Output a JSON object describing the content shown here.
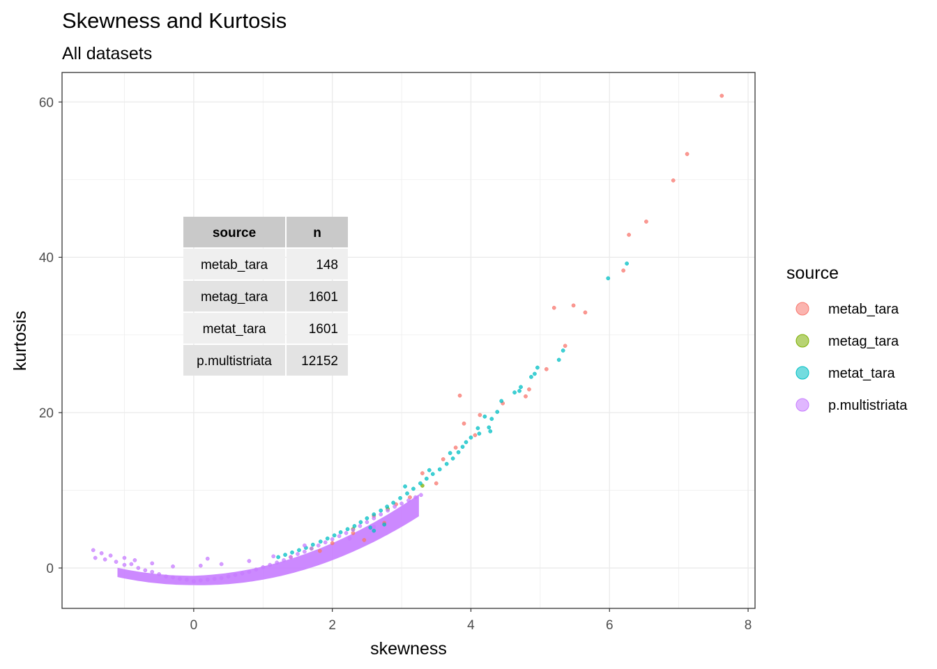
{
  "chart_data": {
    "type": "scatter",
    "title": "Skewness and Kurtosis",
    "subtitle": "All datasets",
    "xlabel": "skewness",
    "ylabel": "kurtosis",
    "xlim": [
      -1.9,
      8.1
    ],
    "ylim": [
      -5.2,
      63.8
    ],
    "x_ticks": [
      0,
      2,
      4,
      6,
      8
    ],
    "y_ticks": [
      0,
      20,
      40,
      60
    ],
    "x_tick_labels": [
      "0",
      "2",
      "4",
      "6",
      "8"
    ],
    "y_tick_labels": [
      "0",
      "20",
      "40",
      "60"
    ],
    "grid": true,
    "legend": {
      "title": "source",
      "position": "right",
      "entries": [
        {
          "label": "metab_tara",
          "color": "#F8766D"
        },
        {
          "label": "metag_tara",
          "color": "#7CAE00"
        },
        {
          "label": "metat_tara",
          "color": "#00BFC4"
        },
        {
          "label": "p.multistriata",
          "color": "#C77CFF"
        }
      ]
    },
    "table": {
      "headers": [
        "source",
        "n"
      ],
      "rows": [
        [
          "metab_tara",
          "148"
        ],
        [
          "metag_tara",
          "1601"
        ],
        [
          "metat_tara",
          "1601"
        ],
        [
          "p.multistriata",
          "12152"
        ]
      ]
    },
    "series": [
      {
        "name": "metab_tara",
        "color": "#F8766D",
        "points": [
          [
            7.62,
            60.8
          ],
          [
            7.12,
            53.3
          ],
          [
            6.92,
            49.9
          ],
          [
            6.53,
            44.6
          ],
          [
            6.28,
            42.9
          ],
          [
            6.2,
            38.3
          ],
          [
            5.65,
            32.9
          ],
          [
            5.48,
            33.8
          ],
          [
            5.2,
            33.5
          ],
          [
            5.36,
            28.6
          ],
          [
            5.09,
            25.6
          ],
          [
            4.84,
            23.0
          ],
          [
            4.79,
            22.1
          ],
          [
            4.46,
            21.2
          ],
          [
            3.84,
            22.2
          ],
          [
            4.13,
            19.7
          ],
          [
            3.9,
            18.6
          ],
          [
            4.06,
            17.1
          ],
          [
            3.78,
            15.5
          ],
          [
            3.6,
            14.0
          ],
          [
            3.3,
            12.2
          ],
          [
            3.5,
            10.9
          ],
          [
            3.12,
            9.1
          ],
          [
            2.92,
            8.2
          ],
          [
            2.6,
            6.7
          ],
          [
            2.75,
            5.8
          ],
          [
            2.3,
            4.5
          ],
          [
            2.46,
            3.6
          ],
          [
            2.0,
            3.2
          ],
          [
            1.82,
            2.2
          ],
          [
            1.4,
            1.4
          ]
        ]
      },
      {
        "name": "metag_tara",
        "color": "#7CAE00",
        "points": [
          [
            1.7,
            2.5
          ],
          [
            2.3,
            5.0
          ],
          [
            2.8,
            7.6
          ],
          [
            3.3,
            10.6
          ]
        ]
      },
      {
        "name": "metat_tara",
        "color": "#00BFC4",
        "points": [
          [
            6.25,
            39.2
          ],
          [
            5.98,
            37.3
          ],
          [
            5.33,
            28.0
          ],
          [
            5.27,
            26.8
          ],
          [
            4.96,
            25.8
          ],
          [
            4.92,
            25.0
          ],
          [
            4.87,
            24.6
          ],
          [
            4.72,
            23.3
          ],
          [
            4.7,
            22.8
          ],
          [
            4.63,
            22.6
          ],
          [
            4.44,
            21.5
          ],
          [
            4.38,
            20.1
          ],
          [
            4.2,
            19.5
          ],
          [
            4.26,
            18.1
          ],
          [
            4.12,
            17.3
          ],
          [
            4.28,
            17.6
          ],
          [
            4.0,
            16.8
          ],
          [
            3.93,
            16.2
          ],
          [
            3.88,
            15.6
          ],
          [
            3.82,
            14.9
          ],
          [
            3.74,
            14.1
          ],
          [
            3.65,
            13.4
          ],
          [
            3.55,
            12.7
          ],
          [
            3.45,
            12.1
          ],
          [
            3.36,
            11.5
          ],
          [
            3.27,
            10.9
          ],
          [
            3.17,
            10.2
          ],
          [
            3.08,
            9.6
          ],
          [
            2.98,
            9.0
          ],
          [
            2.88,
            8.4
          ],
          [
            2.79,
            7.9
          ],
          [
            2.7,
            7.4
          ],
          [
            2.6,
            6.9
          ],
          [
            2.5,
            6.4
          ],
          [
            2.41,
            5.9
          ],
          [
            2.32,
            5.4
          ],
          [
            2.22,
            5.0
          ],
          [
            2.12,
            4.6
          ],
          [
            2.03,
            4.2
          ],
          [
            1.93,
            3.8
          ],
          [
            1.83,
            3.4
          ],
          [
            1.72,
            3.0
          ],
          [
            1.62,
            2.6
          ],
          [
            1.52,
            2.3
          ],
          [
            1.42,
            2.0
          ],
          [
            1.32,
            1.7
          ],
          [
            1.22,
            1.4
          ],
          [
            2.6,
            4.8
          ],
          [
            2.75,
            5.6
          ],
          [
            2.55,
            5.2
          ],
          [
            3.05,
            10.5
          ],
          [
            3.4,
            12.6
          ],
          [
            3.7,
            14.8
          ],
          [
            4.1,
            18.0
          ],
          [
            4.3,
            19.2
          ]
        ]
      },
      {
        "name": "p.multistriata",
        "color": "#C77CFF",
        "points": [
          [
            -1.45,
            2.3
          ],
          [
            -1.42,
            1.3
          ],
          [
            -1.33,
            1.9
          ],
          [
            -1.28,
            1.1
          ],
          [
            -1.2,
            1.6
          ],
          [
            -1.12,
            0.8
          ],
          [
            -1.0,
            0.4
          ],
          [
            -0.9,
            0.5
          ],
          [
            -0.8,
            0.0
          ],
          [
            -0.7,
            -0.3
          ],
          [
            -0.6,
            -0.5
          ],
          [
            -0.5,
            -0.8
          ],
          [
            -0.4,
            -1.1
          ],
          [
            -0.3,
            -1.2
          ],
          [
            -0.2,
            -1.4
          ],
          [
            -0.1,
            -1.5
          ],
          [
            0.0,
            -1.7
          ],
          [
            0.1,
            -1.6
          ],
          [
            0.2,
            -1.5
          ],
          [
            0.3,
            -1.4
          ],
          [
            0.4,
            -1.3
          ],
          [
            0.5,
            -1.1
          ],
          [
            0.6,
            -0.9
          ],
          [
            0.7,
            -0.7
          ],
          [
            0.8,
            -0.5
          ],
          [
            0.9,
            -0.2
          ],
          [
            1.0,
            0.1
          ],
          [
            1.1,
            0.4
          ],
          [
            1.2,
            0.7
          ],
          [
            1.3,
            1.0
          ],
          [
            1.4,
            1.4
          ],
          [
            1.5,
            1.8
          ],
          [
            1.6,
            2.1
          ],
          [
            1.7,
            2.5
          ],
          [
            1.8,
            2.9
          ],
          [
            1.9,
            3.3
          ],
          [
            2.0,
            3.7
          ],
          [
            2.1,
            4.1
          ],
          [
            2.2,
            4.5
          ],
          [
            2.3,
            4.9
          ],
          [
            2.4,
            5.4
          ],
          [
            2.5,
            5.9
          ],
          [
            2.6,
            6.4
          ],
          [
            2.7,
            6.9
          ],
          [
            2.8,
            7.4
          ],
          [
            2.9,
            7.9
          ],
          [
            3.0,
            8.3
          ],
          [
            3.1,
            8.7
          ],
          [
            3.2,
            9.1
          ],
          [
            3.28,
            9.4
          ],
          [
            -0.85,
            1.0
          ],
          [
            -0.6,
            0.6
          ],
          [
            -0.3,
            0.2
          ],
          [
            0.1,
            0.3
          ],
          [
            0.4,
            0.5
          ],
          [
            0.8,
            0.9
          ],
          [
            1.15,
            1.5
          ],
          [
            1.6,
            2.9
          ],
          [
            2.25,
            3.8
          ],
          [
            2.6,
            5.3
          ],
          [
            0.2,
            1.2
          ],
          [
            -1.0,
            1.3
          ]
        ]
      }
    ]
  }
}
